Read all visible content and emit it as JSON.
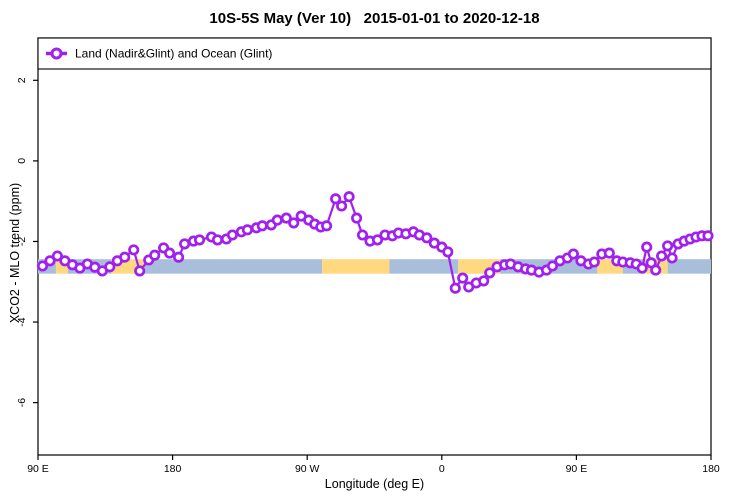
{
  "title": "10S-5S May (Ver 10)   2015-01-01 to 2020-12-18",
  "colors": {
    "line": "#A020F0",
    "marker_fill": "#FFFFFF",
    "band_blue": "#A9BEDB",
    "band_yellow": "#FFD880",
    "axis": "#000000",
    "background": "#FFFFFF",
    "legend_border": "#000000"
  },
  "chart_data": {
    "type": "line",
    "title": "10S-5S May (Ver 10)   2015-01-01 to 2020-12-18",
    "xlabel": "Longitude (deg E)",
    "ylabel": "XCO2 - MLO trend (ppm)",
    "grid": false,
    "legend_position": "top-full-width",
    "legend": [
      "Land (Nadir&Glint) and Ocean (Glint)"
    ],
    "xlim": [
      90,
      540
    ],
    "ylim": [
      -7.3,
      3.05
    ],
    "x_ticks": [
      {
        "lon": 90,
        "label": "90 E"
      },
      {
        "lon": 180,
        "label": "180"
      },
      {
        "lon": 270,
        "label": "90 W"
      },
      {
        "lon": 360,
        "label": "0"
      },
      {
        "lon": 450,
        "label": "90 E"
      },
      {
        "lon": 540,
        "label": "180"
      }
    ],
    "y_ticks": [
      {
        "value": 2,
        "label": "2"
      },
      {
        "value": 0,
        "label": "0"
      },
      {
        "value": -2,
        "label": "-2"
      },
      {
        "value": -4,
        "label": "-4"
      },
      {
        "value": -6,
        "label": "-6"
      }
    ],
    "surface_band": {
      "value_top": -2.44,
      "value_bottom": -2.8,
      "segments": [
        {
          "from": 90,
          "to": 102,
          "color": "blue"
        },
        {
          "from": 102,
          "to": 110,
          "color": "yellow"
        },
        {
          "from": 110,
          "to": 139,
          "color": "blue"
        },
        {
          "from": 139,
          "to": 161,
          "color": "yellow"
        },
        {
          "from": 161,
          "to": 280,
          "color": "blue"
        },
        {
          "from": 280,
          "to": 325,
          "color": "yellow"
        },
        {
          "from": 325,
          "to": 371,
          "color": "blue"
        },
        {
          "from": 371,
          "to": 399,
          "color": "yellow"
        },
        {
          "from": 399,
          "to": 464,
          "color": "blue"
        },
        {
          "from": 464,
          "to": 481,
          "color": "yellow"
        },
        {
          "from": 481,
          "to": 496,
          "color": "blue"
        },
        {
          "from": 496,
          "to": 511,
          "color": "yellow"
        },
        {
          "from": 511,
          "to": 540,
          "color": "blue"
        }
      ]
    },
    "series": [
      {
        "name": "Land (Nadir&Glint) and Ocean (Glint)",
        "marker": "open-circle",
        "points": [
          [
            93,
            -2.61
          ],
          [
            98,
            -2.48
          ],
          [
            103,
            -2.36
          ],
          [
            108,
            -2.48
          ],
          [
            113,
            -2.58
          ],
          [
            118,
            -2.66
          ],
          [
            123,
            -2.56
          ],
          [
            128,
            -2.64
          ],
          [
            133,
            -2.73
          ],
          [
            138,
            -2.63
          ],
          [
            143,
            -2.48
          ],
          [
            148,
            -2.39
          ],
          [
            154,
            -2.21
          ],
          [
            158,
            -2.73
          ],
          [
            164,
            -2.46
          ],
          [
            168,
            -2.34
          ],
          [
            174,
            -2.16
          ],
          [
            178,
            -2.29
          ],
          [
            184,
            -2.39
          ],
          [
            188,
            -2.06
          ],
          [
            194,
            -1.99
          ],
          [
            198,
            -1.96
          ],
          [
            206,
            -1.89
          ],
          [
            210,
            -1.96
          ],
          [
            216,
            -1.94
          ],
          [
            220,
            -1.84
          ],
          [
            226,
            -1.76
          ],
          [
            230,
            -1.71
          ],
          [
            236,
            -1.66
          ],
          [
            240,
            -1.61
          ],
          [
            246,
            -1.59
          ],
          [
            250,
            -1.47
          ],
          [
            256,
            -1.42
          ],
          [
            261,
            -1.54
          ],
          [
            266,
            -1.37
          ],
          [
            271,
            -1.47
          ],
          [
            275,
            -1.57
          ],
          [
            279,
            -1.64
          ],
          [
            283,
            -1.61
          ],
          [
            289,
            -0.94
          ],
          [
            293,
            -1.12
          ],
          [
            298,
            -0.89
          ],
          [
            303,
            -1.42
          ],
          [
            307,
            -1.84
          ],
          [
            312,
            -1.99
          ],
          [
            317,
            -1.96
          ],
          [
            322,
            -1.84
          ],
          [
            327,
            -1.86
          ],
          [
            331,
            -1.79
          ],
          [
            336,
            -1.81
          ],
          [
            341,
            -1.76
          ],
          [
            345,
            -1.84
          ],
          [
            350,
            -1.91
          ],
          [
            355,
            -2.04
          ],
          [
            360,
            -2.14
          ],
          [
            364,
            -2.26
          ],
          [
            369,
            -3.16
          ],
          [
            374,
            -2.91
          ],
          [
            378,
            -3.13
          ],
          [
            383,
            -3.03
          ],
          [
            388,
            -2.98
          ],
          [
            392,
            -2.78
          ],
          [
            397,
            -2.63
          ],
          [
            402,
            -2.58
          ],
          [
            406,
            -2.56
          ],
          [
            411,
            -2.63
          ],
          [
            416,
            -2.68
          ],
          [
            420,
            -2.71
          ],
          [
            425,
            -2.76
          ],
          [
            430,
            -2.71
          ],
          [
            434,
            -2.61
          ],
          [
            439,
            -2.48
          ],
          [
            444,
            -2.41
          ],
          [
            448,
            -2.31
          ],
          [
            453,
            -2.48
          ],
          [
            458,
            -2.56
          ],
          [
            462,
            -2.51
          ],
          [
            467,
            -2.31
          ],
          [
            472,
            -2.29
          ],
          [
            477,
            -2.48
          ],
          [
            481,
            -2.51
          ],
          [
            486,
            -2.53
          ],
          [
            490,
            -2.56
          ],
          [
            494,
            -2.66
          ],
          [
            497,
            -2.14
          ],
          [
            500,
            -2.53
          ],
          [
            503,
            -2.71
          ],
          [
            507,
            -2.36
          ],
          [
            511,
            -2.11
          ],
          [
            514,
            -2.41
          ],
          [
            518,
            -2.06
          ],
          [
            522,
            -1.99
          ],
          [
            526,
            -1.94
          ],
          [
            530,
            -1.89
          ],
          [
            534,
            -1.86
          ],
          [
            538,
            -1.86
          ]
        ]
      }
    ]
  }
}
